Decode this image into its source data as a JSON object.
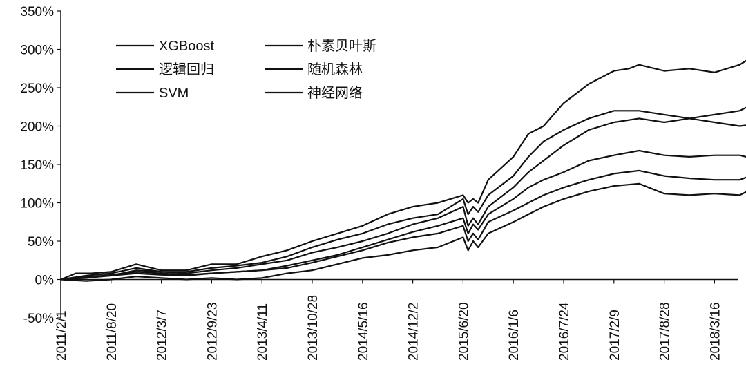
{
  "chart_data": {
    "type": "line",
    "title": "",
    "xlabel": "",
    "ylabel": "",
    "ylim": [
      -0.5,
      3.5
    ],
    "y_ticks": [
      -0.5,
      0,
      0.5,
      1,
      1.5,
      2,
      2.5,
      3,
      3.5
    ],
    "y_tick_labels": [
      "-50%",
      "0%",
      "50%",
      "100%",
      "150%",
      "200%",
      "250%",
      "300%",
      "350%"
    ],
    "x_tick_labels": [
      "2011/2/1",
      "2011/8/20",
      "2012/3/7",
      "2012/9/23",
      "2013/4/11",
      "2013/10/28",
      "2014/5/16",
      "2014/12/2",
      "2015/6/20",
      "2016/1/6",
      "2016/7/24",
      "2017/2/9",
      "2017/8/28",
      "2018/3/16"
    ],
    "x_values_as_tick_index": true,
    "legend_position": "top-left",
    "grid": false,
    "line_color": "#111111",
    "series": [
      {
        "name": "XGBoost",
        "x": [
          0,
          0.3,
          0.6,
          1,
          1.5,
          2,
          2.5,
          3,
          3.5,
          4,
          4.5,
          5,
          5.5,
          6,
          6.5,
          7,
          7.5,
          8,
          8.1,
          8.2,
          8.3,
          8.5,
          9,
          9.3,
          9.6,
          10,
          10.5,
          11,
          11.3,
          11.5,
          12,
          12.5,
          13,
          13.5,
          13.75
        ],
        "values": [
          0,
          0.08,
          0.08,
          0.1,
          0.2,
          0.12,
          0.12,
          0.2,
          0.2,
          0.3,
          0.38,
          0.5,
          0.6,
          0.7,
          0.85,
          0.95,
          1.0,
          1.1,
          1.0,
          1.05,
          1.0,
          1.3,
          1.6,
          1.9,
          2.0,
          2.3,
          2.55,
          2.72,
          2.75,
          2.8,
          2.72,
          2.75,
          2.7,
          2.8,
          2.9
        ]
      },
      {
        "name": "朴素贝叶斯",
        "x": [
          0,
          0.5,
          1,
          1.5,
          2,
          2.5,
          3,
          3.5,
          4,
          4.5,
          5,
          5.5,
          6,
          6.5,
          7,
          7.5,
          8,
          8.1,
          8.2,
          8.3,
          8.5,
          9,
          9.3,
          9.6,
          10,
          10.5,
          11,
          11.5,
          12,
          12.5,
          13,
          13.5,
          13.75
        ],
        "values": [
          0,
          0.03,
          0.05,
          0.12,
          0.1,
          0.08,
          0.12,
          0.15,
          0.2,
          0.25,
          0.35,
          0.42,
          0.5,
          0.6,
          0.72,
          0.8,
          0.95,
          0.7,
          0.8,
          0.72,
          0.95,
          1.2,
          1.4,
          1.55,
          1.75,
          1.95,
          2.05,
          2.1,
          2.05,
          2.1,
          2.15,
          2.2,
          2.28
        ]
      },
      {
        "name": "逻辑回归",
        "x": [
          0,
          0.5,
          1,
          1.5,
          2,
          2.5,
          3,
          3.5,
          4,
          4.5,
          5,
          5.5,
          6,
          6.5,
          7,
          7.5,
          8,
          8.1,
          8.2,
          8.3,
          8.5,
          9,
          9.3,
          9.6,
          10,
          10.5,
          11,
          11.5,
          12,
          12.5,
          13,
          13.5,
          13.75
        ],
        "values": [
          0,
          0.05,
          0.08,
          0.15,
          0.1,
          0.1,
          0.15,
          0.18,
          0.22,
          0.3,
          0.42,
          0.52,
          0.6,
          0.72,
          0.8,
          0.85,
          1.05,
          0.85,
          0.95,
          0.88,
          1.1,
          1.35,
          1.6,
          1.8,
          1.95,
          2.1,
          2.2,
          2.2,
          2.15,
          2.1,
          2.05,
          2.0,
          2.02
        ]
      },
      {
        "name": "随机森林",
        "x": [
          0,
          0.5,
          1,
          1.5,
          2,
          2.5,
          3,
          3.5,
          4,
          4.5,
          5,
          5.5,
          6,
          6.5,
          7,
          7.5,
          8,
          8.1,
          8.2,
          8.3,
          8.5,
          9,
          9.3,
          9.6,
          10,
          10.5,
          11,
          11.5,
          12,
          12.5,
          13,
          13.5,
          13.75
        ],
        "values": [
          0,
          0.02,
          0.05,
          0.08,
          0.06,
          0.05,
          0.08,
          0.1,
          0.12,
          0.18,
          0.25,
          0.32,
          0.42,
          0.52,
          0.62,
          0.7,
          0.8,
          0.6,
          0.72,
          0.65,
          0.85,
          1.05,
          1.2,
          1.3,
          1.4,
          1.55,
          1.62,
          1.68,
          1.62,
          1.6,
          1.62,
          1.62,
          1.58
        ]
      },
      {
        "name": "SVM",
        "x": [
          0,
          0.5,
          1,
          1.5,
          2,
          2.5,
          3,
          3.5,
          4,
          4.5,
          5,
          5.5,
          6,
          6.5,
          7,
          7.5,
          8,
          8.1,
          8.2,
          8.3,
          8.5,
          9,
          9.3,
          9.6,
          10,
          10.5,
          11,
          11.5,
          12,
          12.5,
          13,
          13.5,
          13.75
        ],
        "values": [
          0,
          0.03,
          0.06,
          0.1,
          0.08,
          0.06,
          0.08,
          0.1,
          0.12,
          0.15,
          0.22,
          0.3,
          0.38,
          0.48,
          0.55,
          0.6,
          0.7,
          0.5,
          0.6,
          0.52,
          0.75,
          0.9,
          1.0,
          1.1,
          1.2,
          1.3,
          1.38,
          1.42,
          1.35,
          1.32,
          1.3,
          1.3,
          1.36
        ]
      },
      {
        "name": "神经网络",
        "x": [
          0,
          0.5,
          1,
          1.5,
          2,
          2.5,
          3,
          3.5,
          4,
          4.5,
          5,
          5.5,
          6,
          6.5,
          7,
          7.5,
          8,
          8.1,
          8.2,
          8.3,
          8.5,
          9,
          9.3,
          9.6,
          10,
          10.5,
          11,
          11.5,
          12,
          12.5,
          13,
          13.5,
          13.75
        ],
        "values": [
          0,
          -0.02,
          0.0,
          0.04,
          0.02,
          0.0,
          0.02,
          0.0,
          0.02,
          0.08,
          0.12,
          0.2,
          0.28,
          0.32,
          0.38,
          0.42,
          0.55,
          0.38,
          0.5,
          0.42,
          0.6,
          0.75,
          0.85,
          0.95,
          1.05,
          1.15,
          1.22,
          1.25,
          1.12,
          1.1,
          1.12,
          1.1,
          1.18
        ]
      }
    ]
  }
}
